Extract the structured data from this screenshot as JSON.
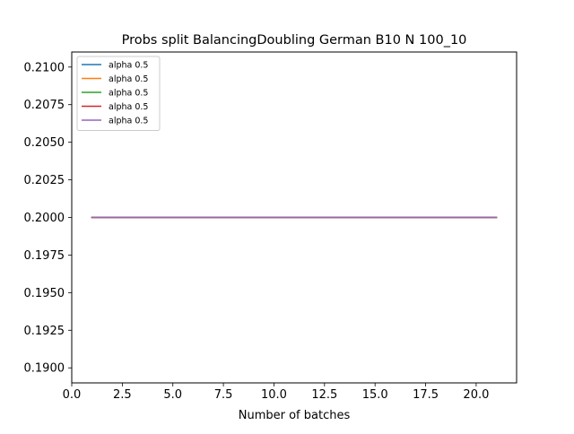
{
  "chart_data": {
    "type": "line",
    "title": "Probs split BalancingDoubling German B10 N 100_10",
    "xlabel": "Number of batches",
    "ylabel": "",
    "xlim": [
      0.0,
      22.0
    ],
    "ylim": [
      0.189,
      0.211
    ],
    "x_ticks": [
      "0.0",
      "2.5",
      "5.0",
      "7.5",
      "10.0",
      "12.5",
      "15.0",
      "17.5",
      "20.0"
    ],
    "y_ticks": [
      "0.1900",
      "0.1925",
      "0.1950",
      "0.1975",
      "0.2000",
      "0.2025",
      "0.2050",
      "0.2075",
      "0.2100"
    ],
    "grid": false,
    "legend_position": "top-left",
    "x": [
      1,
      2,
      3,
      4,
      5,
      6,
      7,
      8,
      9,
      10,
      11,
      12,
      13,
      14,
      15,
      16,
      17,
      18,
      19,
      20,
      21
    ],
    "series": [
      {
        "name": "alpha 0.5",
        "color": "#1f77b4",
        "values": [
          0.2,
          0.2,
          0.2,
          0.2,
          0.2,
          0.2,
          0.2,
          0.2,
          0.2,
          0.2,
          0.2,
          0.2,
          0.2,
          0.2,
          0.2,
          0.2,
          0.2,
          0.2,
          0.2,
          0.2,
          0.2
        ]
      },
      {
        "name": "alpha 0.5",
        "color": "#ff7f0e",
        "values": [
          0.2,
          0.2,
          0.2,
          0.2,
          0.2,
          0.2,
          0.2,
          0.2,
          0.2,
          0.2,
          0.2,
          0.2,
          0.2,
          0.2,
          0.2,
          0.2,
          0.2,
          0.2,
          0.2,
          0.2,
          0.2
        ]
      },
      {
        "name": "alpha 0.5",
        "color": "#2ca02c",
        "values": [
          0.2,
          0.2,
          0.2,
          0.2,
          0.2,
          0.2,
          0.2,
          0.2,
          0.2,
          0.2,
          0.2,
          0.2,
          0.2,
          0.2,
          0.2,
          0.2,
          0.2,
          0.2,
          0.2,
          0.2,
          0.2
        ]
      },
      {
        "name": "alpha 0.5",
        "color": "#d62728",
        "values": [
          0.2,
          0.2,
          0.2,
          0.2,
          0.2,
          0.2,
          0.2,
          0.2,
          0.2,
          0.2,
          0.2,
          0.2,
          0.2,
          0.2,
          0.2,
          0.2,
          0.2,
          0.2,
          0.2,
          0.2,
          0.2
        ]
      },
      {
        "name": "alpha 0.5",
        "color": "#9467bd",
        "values": [
          0.2,
          0.2,
          0.2,
          0.2,
          0.2,
          0.2,
          0.2,
          0.2,
          0.2,
          0.2,
          0.2,
          0.2,
          0.2,
          0.2,
          0.2,
          0.2,
          0.2,
          0.2,
          0.2,
          0.2,
          0.2
        ]
      }
    ]
  }
}
